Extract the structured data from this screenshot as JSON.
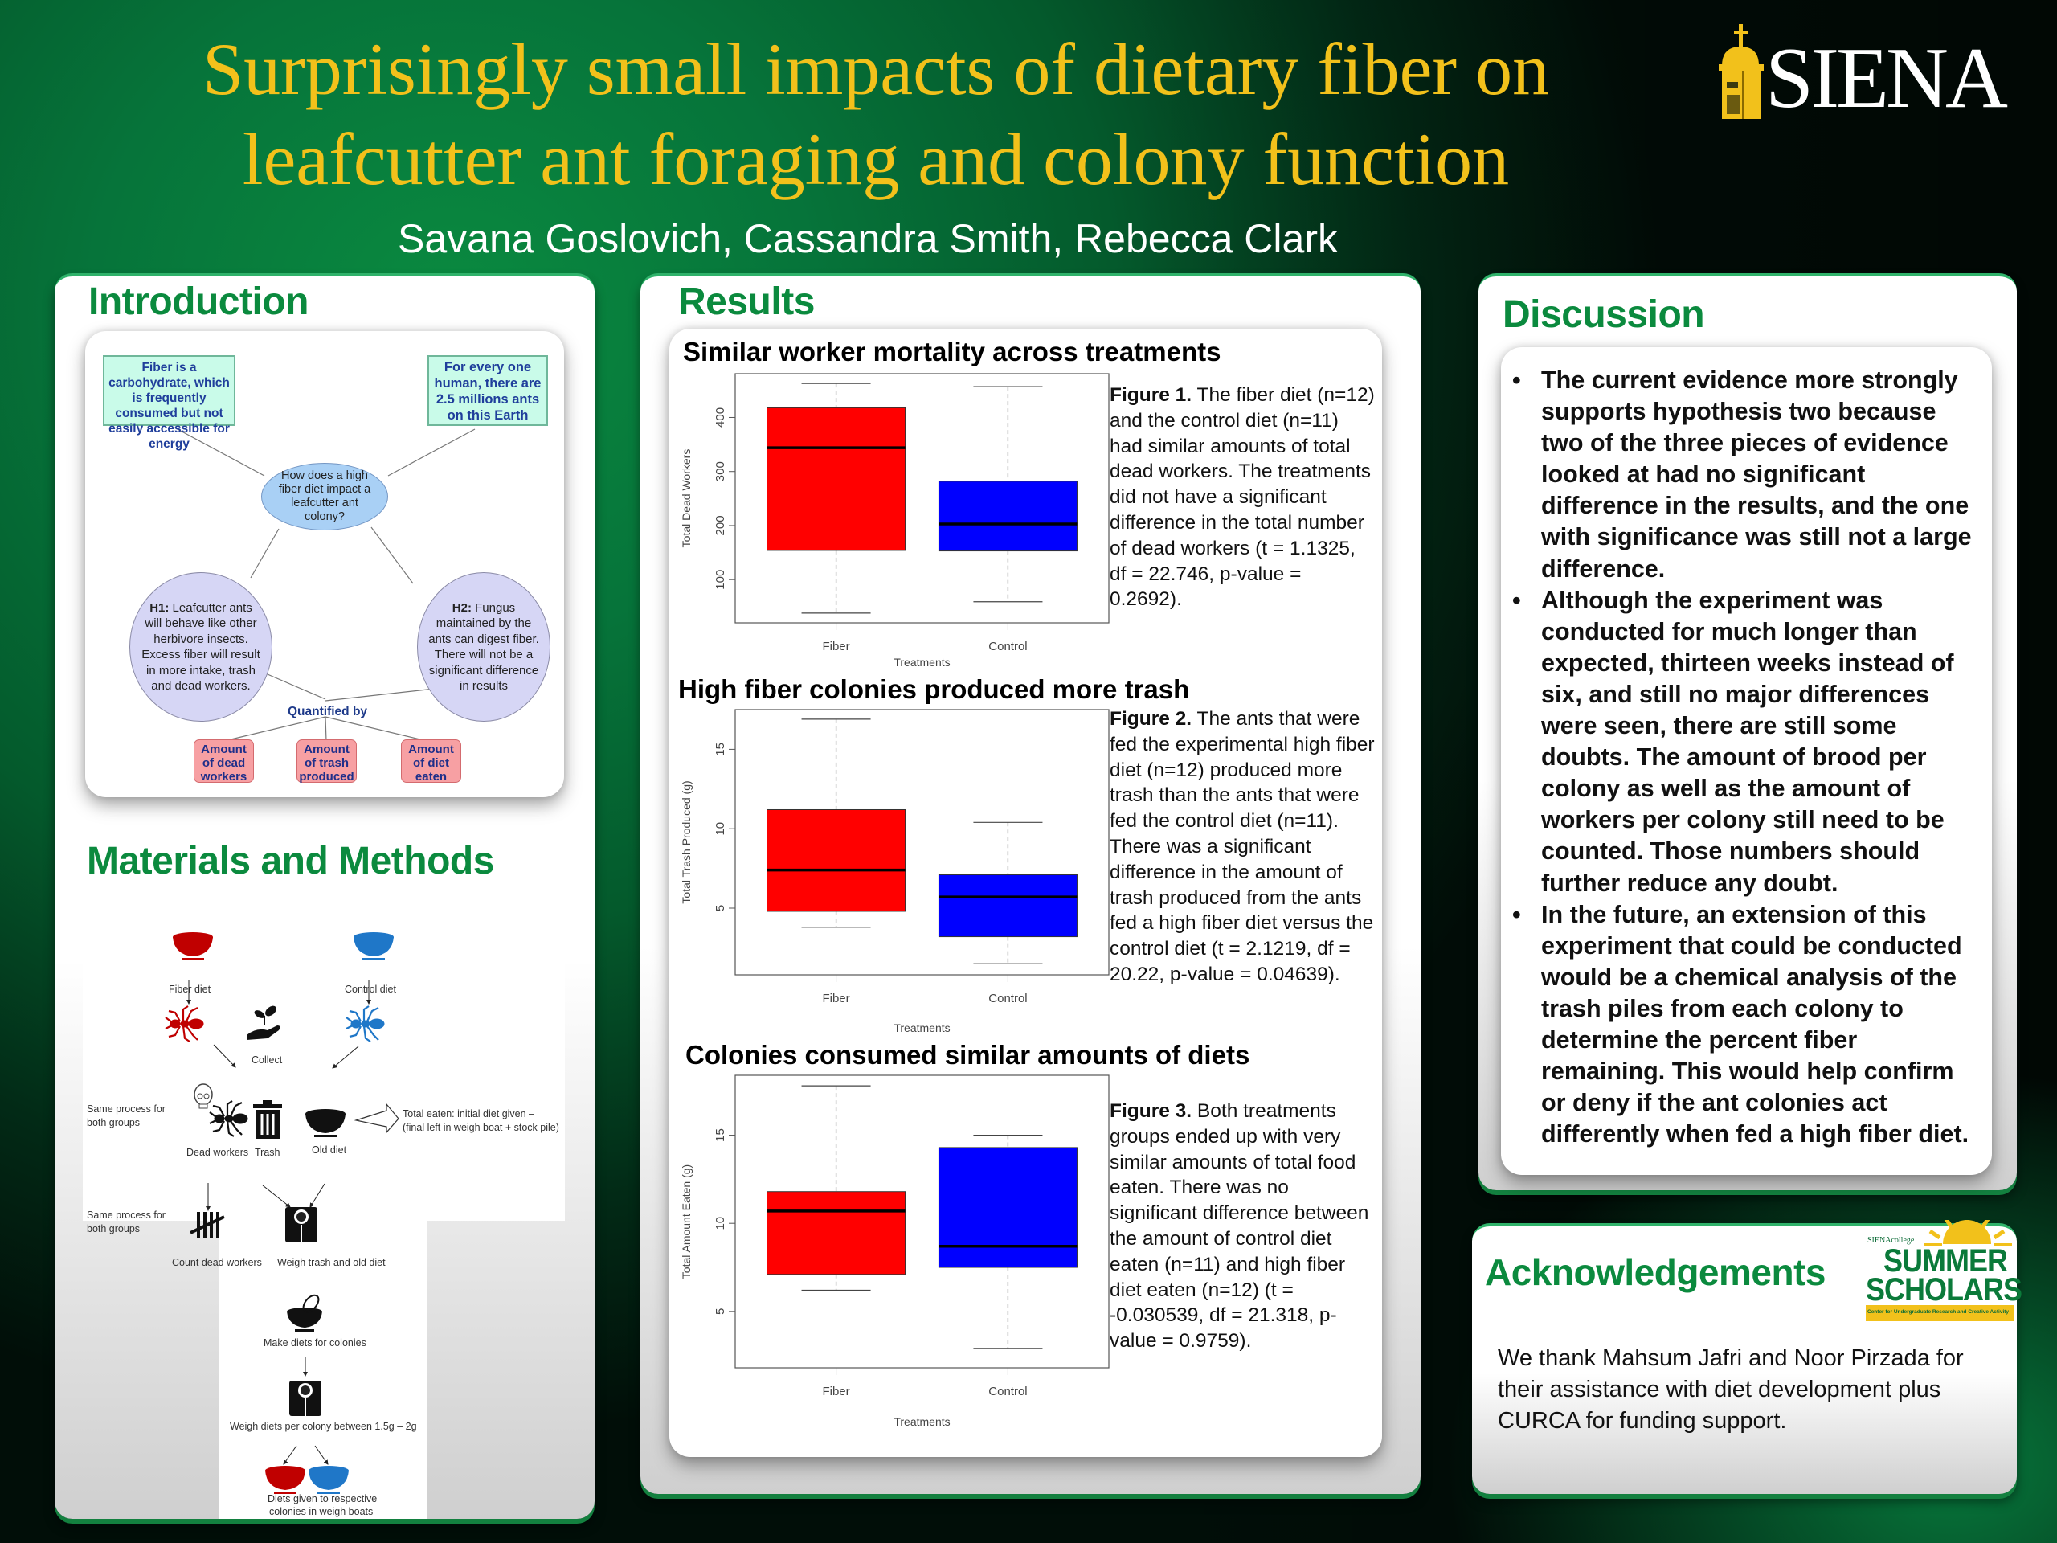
{
  "header": {
    "title_line1": "Surprisingly small impacts of dietary fiber on",
    "title_line2": "leafcutter ant foraging and colony function",
    "authors": "Savana Goslovich, Cassandra Smith, Rebecca Clark",
    "logo_text": "SIENA"
  },
  "colors": {
    "title_gold": "#f2c11b",
    "heading_green": "#0b8a3e",
    "fiber_red": "#ff0000",
    "control_blue": "#0000ff",
    "icon_red": "#c00000",
    "icon_blue": "#1f77c8"
  },
  "introduction": {
    "heading": "Introduction",
    "fact_left": "Fiber is a carbohydrate, which is frequently consumed but not easily accessible for energy",
    "fact_right": "For every one human, there are 2.5 millions ants on this Earth",
    "question": "How does a high fiber diet impact a leafcutter ant colony?",
    "h1_label": "H1:",
    "h1_text": "Leafcutter ants will behave like other herbivore insects. Excess fiber will result in more intake, trash and dead workers.",
    "h2_label": "H2:",
    "h2_text": "Fungus maintained by the ants can digest fiber. There will not be a significant difference in results",
    "quantified_by": "Quantified by",
    "measures": [
      "Amount of dead workers",
      "Amount of trash produced",
      "Amount of diet eaten"
    ]
  },
  "methods": {
    "heading": "Materials and Methods",
    "fiber_diet": "Fiber diet",
    "control_diet": "Control diet",
    "collect": "Collect",
    "same_process_1": "Same process for both groups",
    "same_process_2": "Same process for both groups",
    "dead_workers": "Dead workers",
    "trash": "Trash",
    "old_diet": "Old diet",
    "total_eaten_1": "Total eaten: initial diet given –",
    "total_eaten_2": "(final left in weigh boat + stock pile)",
    "count_dead": "Count dead workers",
    "weigh_trash": "Weigh trash and old diet",
    "make_diets": "Make diets for colonies",
    "weigh_diets": "Weigh diets per colony between 1.5g – 2g",
    "diets_given_1": "Diets given to respective",
    "diets_given_2": "colonies in weigh boats",
    "icons": [
      "bowl-icon",
      "ant-icon",
      "hand-plant-icon",
      "skull-icon",
      "trash-can-icon",
      "tally-icon",
      "scale-icon",
      "whisk-bowl-icon"
    ]
  },
  "results": {
    "heading": "Results",
    "figures": [
      {
        "caption_label": "Figure 1.",
        "caption_text": " The fiber diet (n=12) and the control diet (n=11) had similar amounts of total dead workers. The treatments did not have a significant difference in the total number of dead workers (t = 1.1325, df = 22.746, p-value = 0.2692)."
      },
      {
        "caption_label": "Figure 2.",
        "caption_text": " The ants that were fed the experimental high fiber diet (n=12) produced more trash than the ants that were fed the control diet (n=11). There was a significant difference in the amount of trash produced from the ants fed a high fiber diet versus the control diet (t = 2.1219, df = 20.22, p-value = 0.04639)."
      },
      {
        "caption_label": "Figure 3.",
        "caption_text": " Both treatments groups ended up with very similar amounts of total food eaten. There was no significant difference between the amount of control diet eaten (n=11) and high fiber diet eaten (n=12) (t = -0.030539, df = 21.318, p-value = 0.9759)."
      }
    ]
  },
  "chart_data": [
    {
      "type": "boxplot",
      "title": "Similar worker mortality across treatments",
      "xlabel": "Treatments",
      "ylabel": "Total Dead Workers",
      "categories": [
        "Fiber",
        "Control"
      ],
      "ylim": [
        20,
        481
      ],
      "yticks": [
        100,
        200,
        300,
        400
      ],
      "grid": false,
      "series": [
        {
          "name": "Fiber",
          "color": "#ff0000",
          "min": 38,
          "q1": 154,
          "median": 344,
          "q3": 418,
          "max": 463
        },
        {
          "name": "Control",
          "color": "#0000ff",
          "min": 59,
          "q1": 153,
          "median": 203,
          "q3": 282,
          "max": 457
        }
      ]
    },
    {
      "type": "boxplot",
      "title": "High fiber colonies produced more trash",
      "xlabel": "Treatments",
      "ylabel": "Total Trash Produced (g)",
      "categories": [
        "Fiber",
        "Control"
      ],
      "ylim": [
        0.8,
        17.5
      ],
      "yticks": [
        5,
        10,
        15
      ],
      "grid": false,
      "series": [
        {
          "name": "Fiber",
          "color": "#ff0000",
          "min": 3.8,
          "q1": 4.8,
          "median": 7.4,
          "q3": 11.2,
          "max": 16.9
        },
        {
          "name": "Control",
          "color": "#0000ff",
          "min": 1.5,
          "q1": 3.2,
          "median": 5.7,
          "q3": 7.1,
          "max": 10.4
        }
      ]
    },
    {
      "type": "boxplot",
      "title": "Colonies consumed similar amounts of diets",
      "xlabel": "Treatments",
      "ylabel": "Total Amount Eaten (g)",
      "categories": [
        "Fiber",
        "Control"
      ],
      "ylim": [
        1.8,
        18.4
      ],
      "yticks": [
        5,
        10,
        15
      ],
      "grid": false,
      "series": [
        {
          "name": "Fiber",
          "color": "#ff0000",
          "min": 6.2,
          "q1": 7.1,
          "median": 10.7,
          "q3": 11.8,
          "max": 17.8
        },
        {
          "name": "Control",
          "color": "#0000ff",
          "min": 2.9,
          "q1": 7.5,
          "median": 8.7,
          "q3": 14.3,
          "max": 15.0
        }
      ]
    }
  ],
  "discussion": {
    "heading": "Discussion",
    "bullet_symbol": "•",
    "points": [
      "The current evidence more strongly supports hypothesis two because two of the three pieces of evidence looked at had no significant difference in the results, and the one with significance was still not a large difference.",
      "Although the experiment was conducted for much longer than expected, thirteen weeks instead of six, and still no major differences were seen, there are still some doubts. The amount of brood per colony as well as the amount of workers per colony still need to be counted. Those numbers should further reduce any doubt.",
      "In the future, an extension of this experiment that could be conducted would be a chemical analysis of the trash piles from each colony to determine the percent fiber remaining. This would help confirm or deny if the ant colonies act differently when fed a high fiber diet."
    ]
  },
  "acknowledgements": {
    "heading": "Acknowledgements",
    "text": "We thank Mahsum Jafri and Noor Pirzada for their assistance with diet development plus CURCA for funding support.",
    "logo_small": "SIENAcollege",
    "logo_line1": "SUMMER",
    "logo_line2": "SCHOLARS",
    "logo_band": "Center for Undergraduate Research and Creative Activity"
  }
}
